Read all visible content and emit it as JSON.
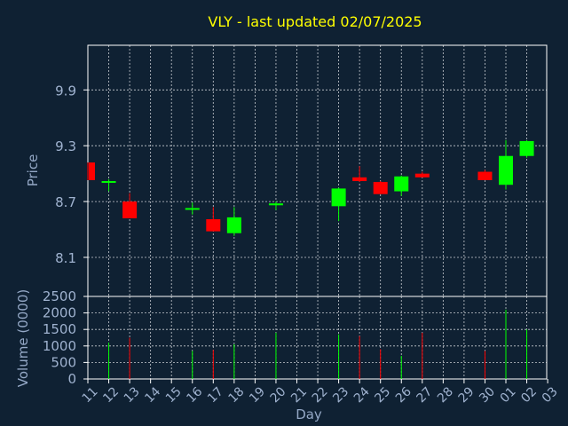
{
  "chart_data": {
    "type": "candlestick",
    "title": "VLY - last updated 02/07/2025",
    "xlabel": "Day",
    "ylabel": "Price",
    "volume_label": "Volume (0000)",
    "grid": true,
    "price_ticks": [
      8.1,
      8.7,
      9.3,
      9.9
    ],
    "price_range": [
      7.68,
      10.38
    ],
    "volume_ticks": [
      0,
      500,
      1000,
      1500,
      2000,
      2500
    ],
    "volume_range": [
      0,
      2500
    ],
    "day_labels": [
      "11",
      "12",
      "13",
      "14",
      "15",
      "16",
      "17",
      "18",
      "19",
      "20",
      "21",
      "22",
      "23",
      "24",
      "25",
      "26",
      "27",
      "28",
      "29",
      "30",
      "01",
      "02",
      "03"
    ],
    "candles": [
      {
        "day": "11",
        "open": 9.12,
        "high": 9.12,
        "low": 8.93,
        "close": 8.93,
        "volume": 0
      },
      {
        "day": "12",
        "open": 8.91,
        "high": 8.94,
        "low": 8.81,
        "close": 8.92,
        "volume": 1100
      },
      {
        "day": "13",
        "open": 8.7,
        "high": 8.79,
        "low": 8.52,
        "close": 8.52,
        "volume": 1250
      },
      {
        "day": "16",
        "open": 8.62,
        "high": 8.69,
        "low": 8.56,
        "close": 8.63,
        "volume": 850
      },
      {
        "day": "17",
        "open": 8.51,
        "high": 8.64,
        "low": 8.38,
        "close": 8.38,
        "volume": 880
      },
      {
        "day": "18",
        "open": 8.36,
        "high": 8.64,
        "low": 8.33,
        "close": 8.53,
        "volume": 1050
      },
      {
        "day": "20",
        "open": 8.66,
        "high": 8.7,
        "low": 8.61,
        "close": 8.68,
        "volume": 1400
      },
      {
        "day": "23",
        "open": 8.65,
        "high": 8.85,
        "low": 8.49,
        "close": 8.84,
        "volume": 1350
      },
      {
        "day": "24",
        "open": 8.96,
        "high": 9.08,
        "low": 8.91,
        "close": 8.92,
        "volume": 1300
      },
      {
        "day": "25",
        "open": 8.91,
        "high": 8.92,
        "low": 8.78,
        "close": 8.78,
        "volume": 900
      },
      {
        "day": "26",
        "open": 8.81,
        "high": 8.98,
        "low": 8.76,
        "close": 8.97,
        "volume": 700
      },
      {
        "day": "27",
        "open": 9.0,
        "high": 9.02,
        "low": 8.96,
        "close": 8.96,
        "volume": 1400
      },
      {
        "day": "30",
        "open": 9.02,
        "high": 9.04,
        "low": 8.93,
        "close": 8.93,
        "volume": 850
      },
      {
        "day": "01",
        "open": 8.88,
        "high": 9.36,
        "low": 8.83,
        "close": 9.19,
        "volume": 2100
      },
      {
        "day": "02",
        "open": 9.19,
        "high": 9.36,
        "low": 9.17,
        "close": 9.35,
        "volume": 1500
      }
    ],
    "colors": {
      "background": "#0f2133",
      "axis": "#ffffff",
      "grid": "#c8ccd2",
      "title": "#ffff00",
      "label": "#94a8c6",
      "tick_text": "#9fb2cf",
      "up": "#00ff00",
      "down": "#ff0000"
    }
  }
}
